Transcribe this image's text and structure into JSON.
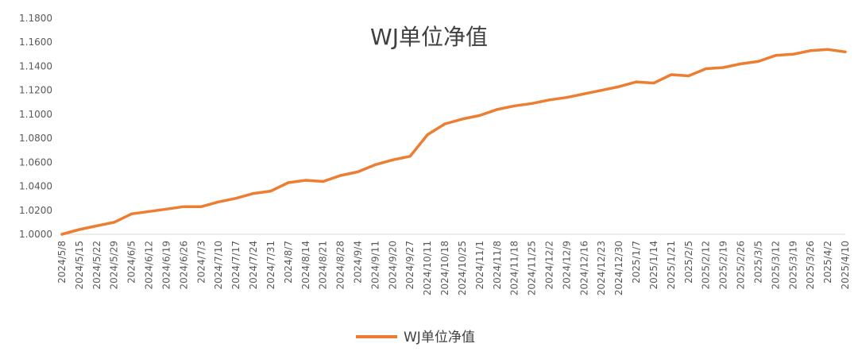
{
  "chart_data": {
    "type": "line",
    "title": "WJ单位净值",
    "xlabel": "",
    "ylabel": "",
    "ylim": [
      1.0,
      1.18
    ],
    "y_ticks": [
      "1.0000",
      "1.0200",
      "1.0400",
      "1.0600",
      "1.0800",
      "1.1000",
      "1.1200",
      "1.1400",
      "1.1600",
      "1.1800"
    ],
    "x_tick_labels": [
      "2024/5/8",
      "2024/5/15",
      "2024/5/22",
      "2024/5/29",
      "2024/6/5",
      "2024/6/12",
      "2024/6/19",
      "2024/6/26",
      "2024/7/3",
      "2024/7/10",
      "2024/7/17",
      "2024/7/24",
      "2024/7/31",
      "2024/8/7",
      "2024/8/14",
      "2024/8/21",
      "2024/8/28",
      "2024/9/4",
      "2024/9/11",
      "2024/9/20",
      "2024/9/27",
      "2024/10/11",
      "2024/10/18",
      "2024/10/25",
      "2024/11/1",
      "2024/11/8",
      "2024/11/18",
      "2024/11/25",
      "2024/12/2",
      "2024/12/9",
      "2024/12/16",
      "2024/12/23",
      "2024/12/30",
      "2025/1/7",
      "2025/1/14",
      "2025/1/21",
      "2025/2/5",
      "2025/2/12",
      "2025/2/19",
      "2025/2/26",
      "2025/3/5",
      "2025/3/12",
      "2025/3/19",
      "2025/3/26",
      "2025/4/2",
      "2025/4/10"
    ],
    "grid": false,
    "legend": "bottom",
    "colors": {
      "series": "#ED7D31",
      "axis": "#D9D9D9",
      "text": "#595959"
    },
    "series": [
      {
        "name": "WJ单位净值",
        "x": [
          "2024/5/8",
          "2024/5/15",
          "2024/5/22",
          "2024/5/29",
          "2024/6/5",
          "2024/6/12",
          "2024/6/19",
          "2024/6/26",
          "2024/7/3",
          "2024/7/10",
          "2024/7/17",
          "2024/7/24",
          "2024/7/31",
          "2024/8/7",
          "2024/8/14",
          "2024/8/21",
          "2024/8/28",
          "2024/9/4",
          "2024/9/11",
          "2024/9/20",
          "2024/9/27",
          "2024/10/11",
          "2024/10/18",
          "2024/10/25",
          "2024/11/1",
          "2024/11/8",
          "2024/11/18",
          "2024/11/25",
          "2024/12/2",
          "2024/12/9",
          "2024/12/16",
          "2024/12/23",
          "2024/12/30",
          "2025/1/7",
          "2025/1/14",
          "2025/1/21",
          "2025/2/5",
          "2025/2/12",
          "2025/2/19",
          "2025/2/26",
          "2025/3/5",
          "2025/3/12",
          "2025/3/19",
          "2025/3/26",
          "2025/4/2",
          "2025/4/10"
        ],
        "values": [
          1.0,
          1.004,
          1.007,
          1.01,
          1.017,
          1.019,
          1.021,
          1.023,
          1.023,
          1.027,
          1.03,
          1.034,
          1.036,
          1.043,
          1.045,
          1.044,
          1.049,
          1.052,
          1.058,
          1.062,
          1.065,
          1.083,
          1.092,
          1.096,
          1.099,
          1.104,
          1.107,
          1.109,
          1.112,
          1.114,
          1.117,
          1.12,
          1.123,
          1.127,
          1.126,
          1.133,
          1.132,
          1.138,
          1.139,
          1.142,
          1.144,
          1.149,
          1.15,
          1.153,
          1.154,
          1.152
        ]
      }
    ]
  }
}
